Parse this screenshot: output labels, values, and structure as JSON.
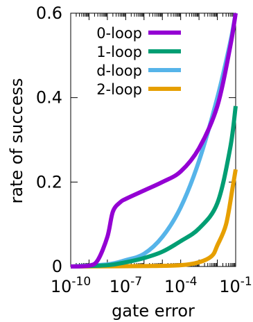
{
  "chart_data": {
    "type": "line",
    "xlabel": "gate error",
    "ylabel": "rate of success",
    "x_scale": "log",
    "xlim": [
      1e-10,
      0.1
    ],
    "ylim": [
      0,
      0.6
    ],
    "x_ticks": [
      {
        "value": 1e-10,
        "base": "10",
        "exp": "-10"
      },
      {
        "value": 1e-07,
        "base": "10",
        "exp": "-7"
      },
      {
        "value": 0.0001,
        "base": "10",
        "exp": "-4"
      },
      {
        "value": 0.1,
        "base": "10",
        "exp": "-1"
      }
    ],
    "y_ticks": [
      {
        "value": 0,
        "label": "0"
      },
      {
        "value": 0.2,
        "label": "0.2"
      },
      {
        "value": 0.4,
        "label": "0.4"
      },
      {
        "value": 0.6,
        "label": "0.6"
      }
    ],
    "grid": false,
    "legend_position": "top-right",
    "series": [
      {
        "name": "0-loop",
        "color": "#9400D3",
        "points": [
          [
            1e-10,
            0.0
          ],
          [
            1e-09,
            0.002
          ],
          [
            3e-09,
            0.015
          ],
          [
            1e-08,
            0.07
          ],
          [
            2e-08,
            0.13
          ],
          [
            5e-08,
            0.152
          ],
          [
            1e-07,
            0.16
          ],
          [
            1e-06,
            0.18
          ],
          [
            1e-05,
            0.2
          ],
          [
            0.0001,
            0.225
          ],
          [
            0.001,
            0.28
          ],
          [
            0.01,
            0.38
          ],
          [
            0.05,
            0.52
          ],
          [
            0.1,
            0.6
          ]
        ]
      },
      {
        "name": "1-loop",
        "color": "#009E73",
        "points": [
          [
            1e-10,
            0.0
          ],
          [
            1e-08,
            0.003
          ],
          [
            1e-07,
            0.01
          ],
          [
            1e-06,
            0.02
          ],
          [
            1e-05,
            0.035
          ],
          [
            0.0001,
            0.06
          ],
          [
            0.001,
            0.09
          ],
          [
            0.01,
            0.15
          ],
          [
            0.05,
            0.28
          ],
          [
            0.1,
            0.38
          ]
        ]
      },
      {
        "name": "d-loop",
        "color": "#56B4E9",
        "points": [
          [
            1e-10,
            0.0
          ],
          [
            1e-08,
            0.005
          ],
          [
            1e-07,
            0.015
          ],
          [
            1e-06,
            0.03
          ],
          [
            1e-05,
            0.07
          ],
          [
            0.0001,
            0.14
          ],
          [
            0.001,
            0.25
          ],
          [
            0.01,
            0.4
          ],
          [
            0.05,
            0.53
          ],
          [
            0.1,
            0.6
          ]
        ]
      },
      {
        "name": "2-loop",
        "color": "#E69F00",
        "points": [
          [
            1e-10,
            0.0
          ],
          [
            1e-06,
            0.001
          ],
          [
            0.0001,
            0.003
          ],
          [
            0.001,
            0.01
          ],
          [
            0.005,
            0.025
          ],
          [
            0.01,
            0.05
          ],
          [
            0.03,
            0.1
          ],
          [
            0.07,
            0.19
          ],
          [
            0.1,
            0.23
          ]
        ]
      }
    ]
  }
}
